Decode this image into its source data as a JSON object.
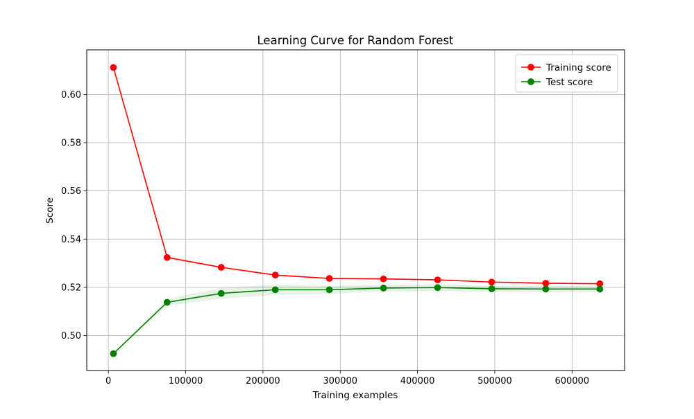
{
  "chart_data": {
    "type": "line",
    "title": "Learning Curve for Random Forest",
    "xlabel": "Training examples",
    "ylabel": "Score",
    "xlim": [
      -28000,
      668000
    ],
    "ylim": [
      0.4855,
      0.6185
    ],
    "xticks": [
      0,
      100000,
      200000,
      300000,
      400000,
      500000,
      600000
    ],
    "xtick_labels": [
      "0",
      "100000",
      "200000",
      "300000",
      "400000",
      "500000",
      "600000"
    ],
    "yticks": [
      0.5,
      0.52,
      0.54,
      0.56,
      0.58,
      0.6
    ],
    "ytick_labels": [
      "0.50",
      "0.52",
      "0.54",
      "0.56",
      "0.58",
      "0.60"
    ],
    "grid": true,
    "legend_position": "top-right",
    "x": [
      6500,
      76000,
      146000,
      216000,
      286000,
      356000,
      426000,
      496000,
      566000,
      636000
    ],
    "series": [
      {
        "name": "Training score",
        "color": "#ff0000",
        "marker": "circle",
        "values": [
          0.6112,
          0.5324,
          0.5283,
          0.5251,
          0.5237,
          0.5235,
          0.5231,
          0.5222,
          0.5217,
          0.5215
        ],
        "band_lower": [
          0.6112,
          0.5318,
          0.5279,
          0.5248,
          0.5235,
          0.5233,
          0.5229,
          0.522,
          0.5215,
          0.5213
        ],
        "band_upper": [
          0.6112,
          0.533,
          0.5287,
          0.5254,
          0.5239,
          0.5237,
          0.5233,
          0.5224,
          0.5219,
          0.5217
        ]
      },
      {
        "name": "Test score",
        "color": "#008000",
        "marker": "circle",
        "values": [
          0.4925,
          0.5138,
          0.5175,
          0.519,
          0.519,
          0.5197,
          0.5199,
          0.5194,
          0.5193,
          0.5193
        ],
        "band_lower": [
          0.4925,
          0.5123,
          0.5153,
          0.5168,
          0.5173,
          0.5183,
          0.5184,
          0.5181,
          0.518,
          0.518
        ],
        "band_upper": [
          0.4925,
          0.5153,
          0.5197,
          0.5212,
          0.5207,
          0.5211,
          0.5214,
          0.5207,
          0.5206,
          0.5206
        ]
      }
    ]
  }
}
